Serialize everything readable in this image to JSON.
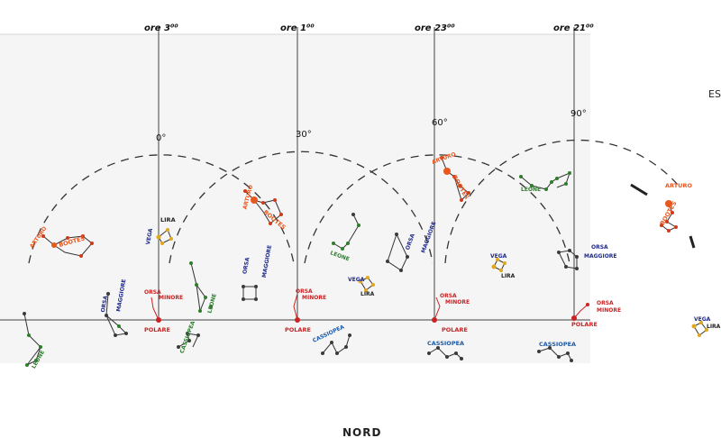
{
  "time_labels": [
    "ore 3⁰⁰",
    "ore 1⁰⁰",
    "ore 23⁰⁰",
    "ore 21⁰⁰"
  ],
  "angle_labels": [
    "0°",
    "30°",
    "60°",
    "90°"
  ],
  "direction_labels": {
    "north": "NORD",
    "east": "ES"
  },
  "star_labels": {
    "polare": "POLARE",
    "orsa_minore_1": "ORSA",
    "orsa_minore_2": "MINORE",
    "orsa_maggiore_1": "ORSA",
    "orsa_maggiore_2": "MAGGIORE",
    "cassiopea": "CASSIOPEA",
    "vega": "VEGA",
    "lira": "LIRA",
    "arturo": "ARTURO",
    "bootes": "BOOTES",
    "leone": "LEONE"
  },
  "colors": {
    "polare": "#cc2222",
    "arturo": "#e8571e",
    "leone": "#2d7d2d",
    "orsa": "#1f2a8a",
    "cassiopea": "#1f5aa8",
    "vega": "#e0a81a",
    "lira": "#222222"
  }
}
